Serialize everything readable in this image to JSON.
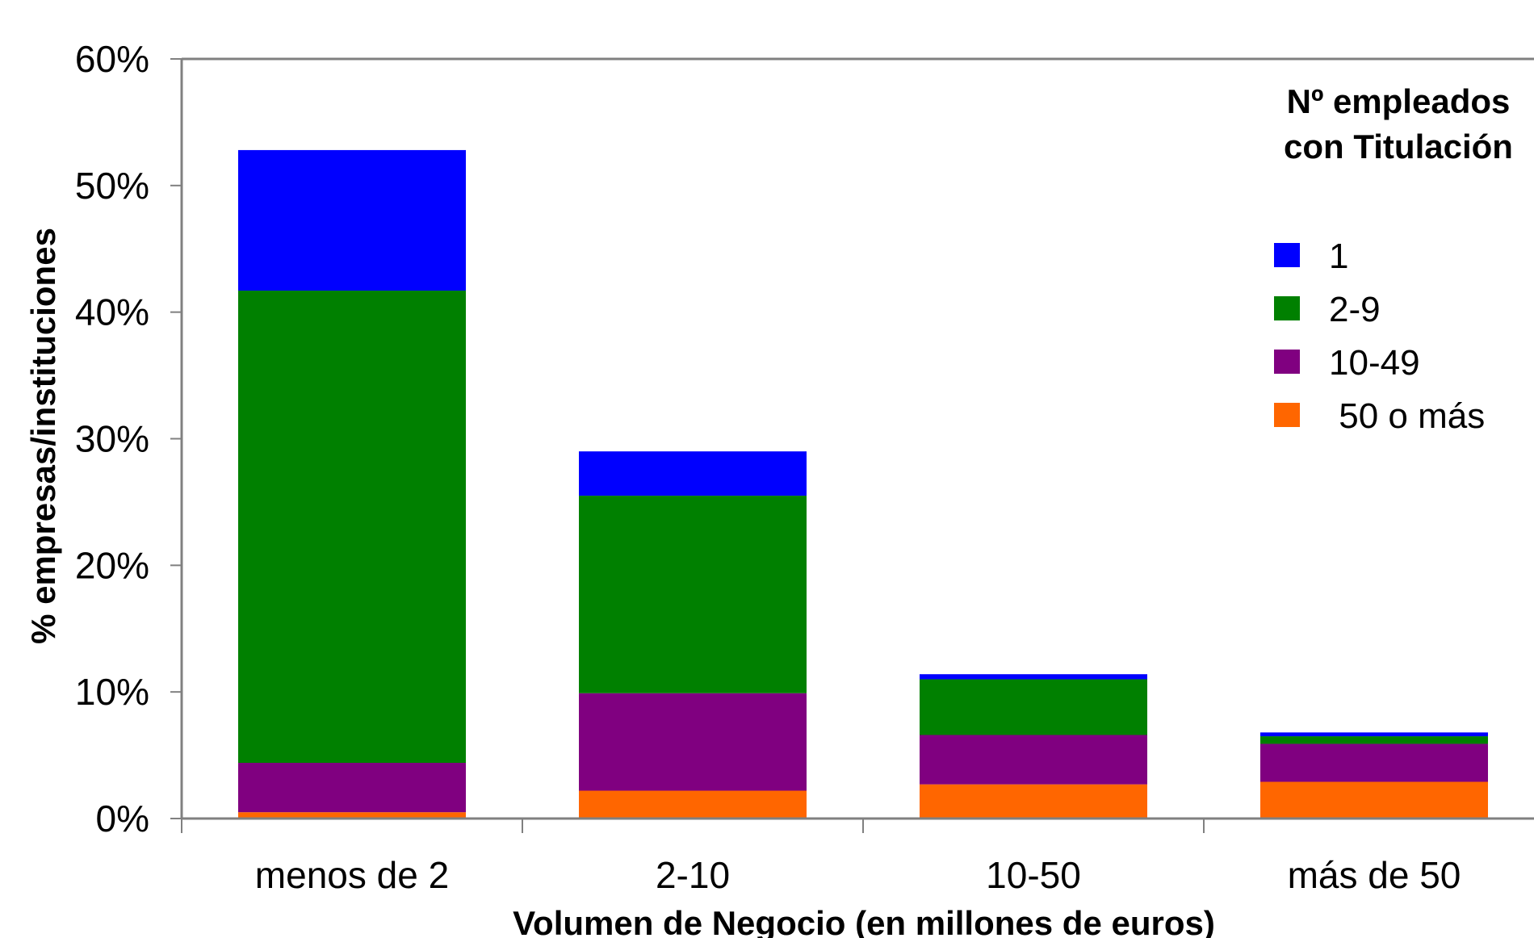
{
  "chart_data": {
    "type": "bar",
    "stacked": true,
    "categories": [
      "menos de 2",
      "2-10",
      "10-50",
      "más de 50"
    ],
    "series": [
      {
        "name": " 50 o más",
        "color": "#FF6600",
        "values": [
          0.5,
          2.2,
          2.7,
          2.9
        ]
      },
      {
        "name": "10-49",
        "color": "#800080",
        "values": [
          3.9,
          7.7,
          3.9,
          3.0
        ]
      },
      {
        "name": "2-9",
        "color": "#008000",
        "values": [
          37.3,
          15.6,
          4.4,
          0.6
        ]
      },
      {
        "name": "1",
        "color": "#0000FF",
        "values": [
          11.1,
          3.5,
          0.4,
          0.3
        ]
      }
    ],
    "ylim": [
      0,
      60
    ],
    "yticks": [
      0,
      10,
      20,
      30,
      40,
      50,
      60
    ],
    "ytick_labels": [
      "0%",
      "10%",
      "20%",
      "30%",
      "40%",
      "50%",
      "60%"
    ],
    "xlabel": "Volumen de Negocio (en millones de euros)",
    "ylabel": "% empresas/instituciones",
    "legend": {
      "title_lines": [
        "Nº empleados",
        "con Titulación"
      ],
      "order": [
        "1",
        "2-9",
        "10-49",
        " 50 o más"
      ],
      "placement": "right"
    },
    "grid": false
  }
}
